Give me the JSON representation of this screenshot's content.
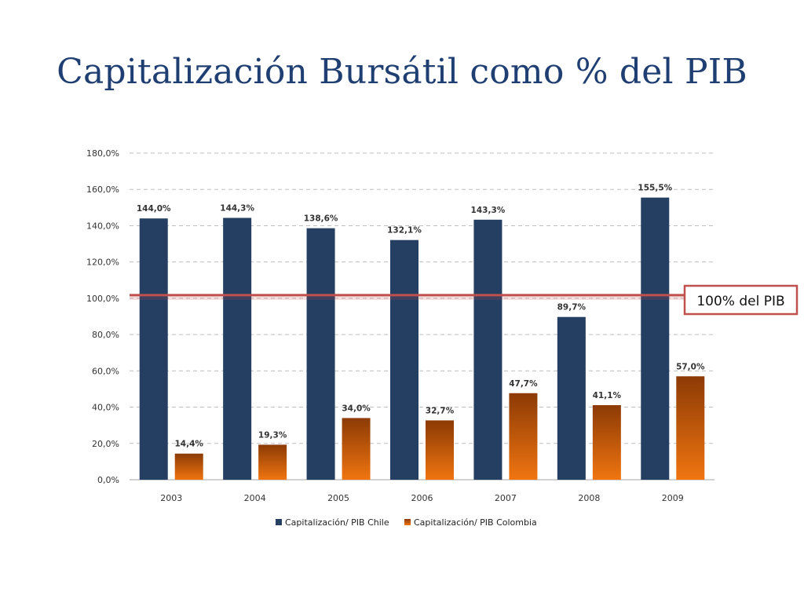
{
  "chart_data": {
    "type": "bar",
    "title": "Capitalización Bursátil como % del PIB",
    "categories": [
      "2003",
      "2004",
      "2005",
      "2006",
      "2007",
      "2008",
      "2009"
    ],
    "series": [
      {
        "name": "Capitalización/ PIB Chile",
        "values": [
          144.0,
          144.3,
          138.6,
          132.1,
          143.3,
          89.7,
          155.5
        ],
        "labels": [
          "144,0%",
          "144,3%",
          "138,6%",
          "132,1%",
          "143,3%",
          "89,7%",
          "155,5%"
        ],
        "color": "#243f62"
      },
      {
        "name": "Capitalización/ PIB Colombia",
        "values": [
          14.4,
          19.3,
          34.0,
          32.7,
          47.7,
          41.1,
          57.0
        ],
        "labels": [
          "14,4%",
          "19,3%",
          "34,0%",
          "32,7%",
          "47,7%",
          "41,1%",
          "57,0%"
        ],
        "color_top": "#8c3a05",
        "color_bottom": "#f07510"
      }
    ],
    "yticks": [
      "0,0%",
      "20,0%",
      "40,0%",
      "60,0%",
      "80,0%",
      "100,0%",
      "120,0%",
      "140,0%",
      "160,0%",
      "180,0%"
    ],
    "ylim": [
      0,
      180
    ],
    "ystep": 20,
    "grid": true,
    "legend": "bottom",
    "reference_line": {
      "value": 100,
      "label": "100% del PIB",
      "color": "#c0504d"
    }
  }
}
